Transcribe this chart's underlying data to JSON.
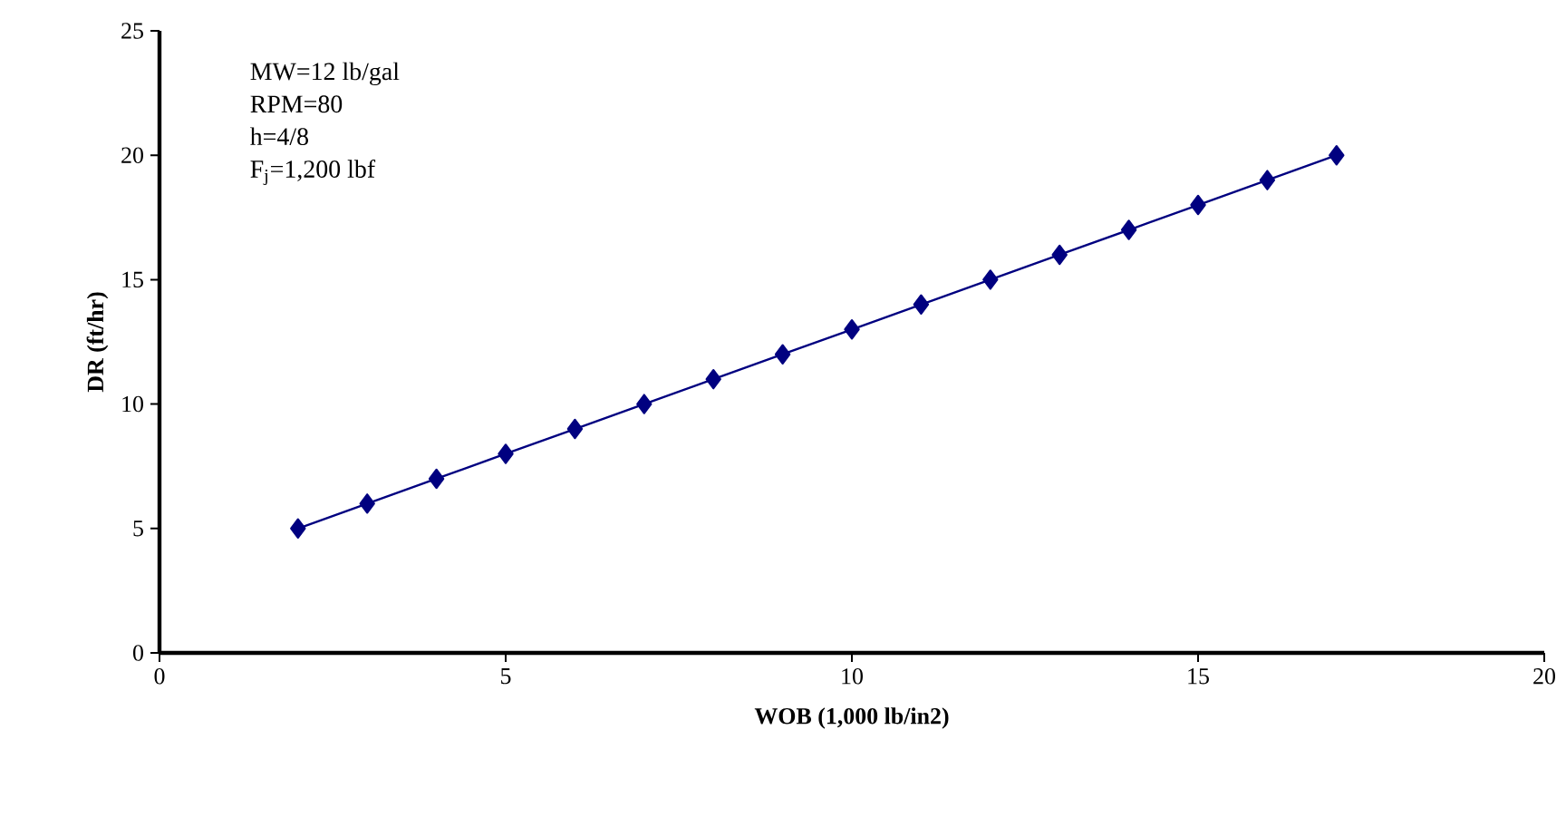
{
  "chart_data": {
    "type": "line",
    "xlabel": "WOB (1,000 lb/in2)",
    "ylabel": "DR (ft/hr)",
    "annotations": [
      "MW=12 lb/gal",
      "RPM=80",
      "h=4/8",
      "F$_{j}$=1,200 lbf"
    ],
    "x": [
      2,
      3,
      4,
      5,
      6,
      7,
      8,
      9,
      10,
      11,
      12,
      13,
      14,
      15,
      16,
      17
    ],
    "series": [
      {
        "color": "#000080",
        "values": [
          5,
          6,
          7,
          8,
          9,
          10,
          11,
          12,
          13,
          14,
          15,
          16,
          17,
          18,
          19,
          20
        ]
      }
    ],
    "xlim": [
      0,
      20
    ],
    "ylim": [
      0,
      25
    ],
    "xticks": [
      0,
      5,
      10,
      15,
      20
    ],
    "yticks": [
      0,
      5,
      10,
      15,
      20,
      25
    ],
    "marker": "diamond"
  }
}
